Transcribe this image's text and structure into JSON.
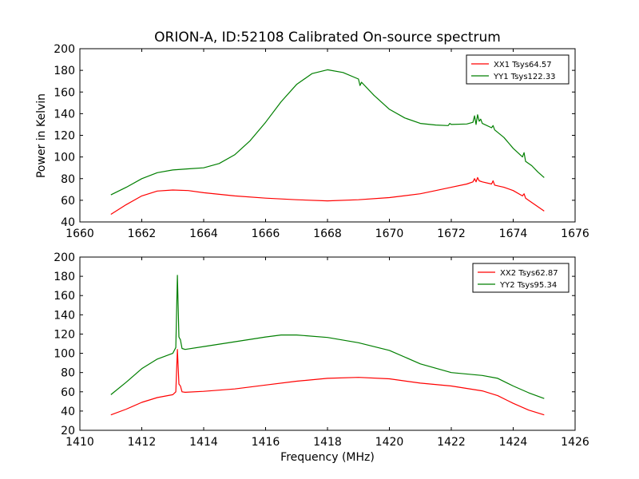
{
  "chart_data": [
    {
      "type": "line",
      "title": "ORION-A, ID:52108 Calibrated On-source spectrum",
      "xlabel": "",
      "ylabel": "Power in Kelvin",
      "xlim": [
        1660,
        1676
      ],
      "ylim": [
        40,
        200
      ],
      "x_ticks": [
        1660,
        1662,
        1664,
        1666,
        1668,
        1670,
        1672,
        1674,
        1676
      ],
      "y_ticks": [
        40,
        60,
        80,
        100,
        120,
        140,
        160,
        180,
        200
      ],
      "legend_position": "top-right",
      "series": [
        {
          "name": "XX1 Tsys64.57",
          "color": "#ff0000",
          "x": [
            1661.0,
            1661.5,
            1662.0,
            1662.5,
            1663.0,
            1663.5,
            1664.0,
            1665.0,
            1666.0,
            1667.0,
            1668.0,
            1669.0,
            1670.0,
            1671.0,
            1671.5,
            1672.0,
            1672.5,
            1672.7,
            1672.75,
            1672.8,
            1672.85,
            1672.9,
            1673.0,
            1673.3,
            1673.35,
            1673.4,
            1673.7,
            1674.0,
            1674.3,
            1674.35,
            1674.4,
            1674.6,
            1674.8,
            1675.0
          ],
          "y": [
            47,
            56,
            64,
            68.5,
            69.5,
            69,
            67,
            64,
            62,
            60.5,
            59.5,
            60.5,
            62.5,
            66,
            69,
            72,
            75,
            77,
            80,
            77,
            81,
            78,
            77,
            75,
            78,
            74,
            72,
            69,
            64,
            66,
            62,
            58,
            54,
            50
          ]
        },
        {
          "name": "YY1 Tsys122.33",
          "color": "#007f00",
          "x": [
            1661.0,
            1661.5,
            1662.0,
            1662.5,
            1663.0,
            1663.5,
            1664.0,
            1664.5,
            1665.0,
            1665.5,
            1666.0,
            1666.5,
            1667.0,
            1667.5,
            1668.0,
            1668.5,
            1669.0,
            1669.05,
            1669.1,
            1669.5,
            1670.0,
            1670.5,
            1671.0,
            1671.5,
            1671.9,
            1671.95,
            1672.0,
            1672.5,
            1672.7,
            1672.75,
            1672.8,
            1672.85,
            1672.9,
            1672.95,
            1673.0,
            1673.3,
            1673.35,
            1673.4,
            1673.7,
            1674.0,
            1674.3,
            1674.35,
            1674.4,
            1674.6,
            1674.8,
            1675.0
          ],
          "y": [
            65,
            72,
            80,
            85.5,
            88,
            89,
            90,
            94,
            102,
            115,
            132,
            151,
            167,
            177,
            180.5,
            178,
            172,
            166,
            169,
            157,
            144,
            136,
            131,
            129.5,
            129,
            131,
            130,
            130.5,
            132,
            138,
            130,
            139,
            133,
            135,
            131,
            127,
            129,
            125,
            118,
            108,
            100,
            104,
            96,
            92,
            86,
            81
          ]
        }
      ]
    },
    {
      "type": "line",
      "title": "",
      "xlabel": "Frequency (MHz)",
      "ylabel": "",
      "xlim": [
        1410,
        1426
      ],
      "ylim": [
        20,
        200
      ],
      "x_ticks": [
        1410,
        1412,
        1414,
        1416,
        1418,
        1420,
        1422,
        1424,
        1426
      ],
      "y_ticks": [
        20,
        40,
        60,
        80,
        100,
        120,
        140,
        160,
        180,
        200
      ],
      "legend_position": "top-right",
      "series": [
        {
          "name": "XX2 Tsys62.87",
          "color": "#ff0000",
          "x": [
            1411.0,
            1411.5,
            1412.0,
            1412.5,
            1413.0,
            1413.1,
            1413.15,
            1413.2,
            1413.25,
            1413.3,
            1413.4,
            1414.0,
            1415.0,
            1416.0,
            1417.0,
            1418.0,
            1419.0,
            1420.0,
            1421.0,
            1422.0,
            1423.0,
            1423.5,
            1424.0,
            1424.5,
            1425.0
          ],
          "y": [
            36,
            42,
            49,
            54,
            57,
            60,
            104,
            68,
            66,
            60,
            59.5,
            60.5,
            63,
            67,
            71,
            74,
            75,
            73.5,
            69,
            66,
            61,
            56,
            48,
            41,
            36
          ]
        },
        {
          "name": "YY2 Tsys95.34",
          "color": "#007f00",
          "x": [
            1411.0,
            1411.5,
            1412.0,
            1412.5,
            1413.0,
            1413.1,
            1413.15,
            1413.2,
            1413.25,
            1413.3,
            1413.4,
            1414.0,
            1415.0,
            1416.0,
            1416.5,
            1417.0,
            1418.0,
            1419.0,
            1420.0,
            1421.0,
            1422.0,
            1423.0,
            1423.5,
            1424.0,
            1424.5,
            1425.0
          ],
          "y": [
            57,
            70,
            84,
            94,
            100,
            106,
            181,
            117,
            114,
            105,
            104,
            107,
            112,
            117,
            119,
            119,
            116.5,
            111,
            103,
            89,
            80,
            77,
            74,
            66,
            59,
            53
          ]
        }
      ]
    }
  ]
}
